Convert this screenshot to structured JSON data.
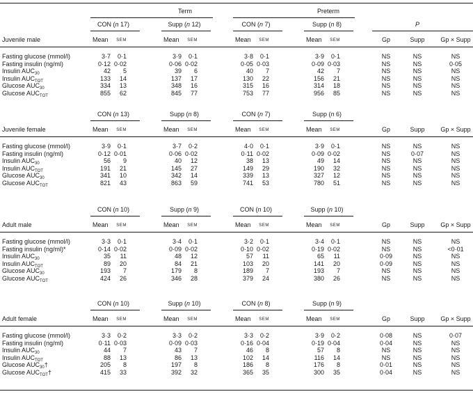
{
  "header": {
    "term": "Term",
    "preterm": "Preterm",
    "p": "P",
    "mean": "Mean",
    "sem": "SEM"
  },
  "sections": [
    {
      "title": "Juvenile male",
      "groups": [
        {
          "label": "CON",
          "n": "17"
        },
        {
          "label": "Supp",
          "n": "12"
        },
        {
          "label": "CON",
          "n": "7"
        },
        {
          "label": "Supp",
          "n": "8"
        }
      ],
      "p_headers": [
        "Gp",
        "Supp",
        "Gp × Supp"
      ],
      "rows": [
        {
          "label": "Fasting glucose (mmol/l)",
          "sub": "",
          "suffix": "",
          "values": [
            "3·7",
            "0·1",
            "3·9",
            "0·1",
            "3·8",
            "0·1",
            "3·9",
            "0·1"
          ],
          "p": [
            "NS",
            "NS",
            "NS"
          ]
        },
        {
          "label": "Fasting insulin (ng/ml)",
          "sub": "",
          "suffix": "",
          "values": [
            "0·12",
            "0·02",
            "0·06",
            "0·02",
            "0·05",
            "0·03",
            "0·09",
            "0·03"
          ],
          "p": [
            "NS",
            "NS",
            "0·05"
          ]
        },
        {
          "label": "Insulin AUC",
          "sub": "30",
          "suffix": "",
          "values": [
            "42",
            "5",
            "39",
            "6",
            "40",
            "7",
            "42",
            "7"
          ],
          "p": [
            "NS",
            "NS",
            "NS"
          ]
        },
        {
          "label": "Insulin AUC",
          "sub": "TOT",
          "suffix": "",
          "values": [
            "133",
            "14",
            "137",
            "17",
            "130",
            "22",
            "156",
            "21"
          ],
          "p": [
            "NS",
            "NS",
            "NS"
          ]
        },
        {
          "label": "Glucose AUC",
          "sub": "30",
          "suffix": "",
          "values": [
            "334",
            "13",
            "348",
            "16",
            "315",
            "16",
            "314",
            "18"
          ],
          "p": [
            "NS",
            "NS",
            "NS"
          ]
        },
        {
          "label": "Glucose AUC",
          "sub": "TOT",
          "suffix": "",
          "values": [
            "855",
            "62",
            "845",
            "77",
            "753",
            "77",
            "956",
            "85"
          ],
          "p": [
            "NS",
            "NS",
            "NS"
          ]
        }
      ]
    },
    {
      "title": "Juvenile female",
      "groups": [
        {
          "label": "CON",
          "n": "13"
        },
        {
          "label": "Supp",
          "n": "8"
        },
        {
          "label": "CON",
          "n": "7"
        },
        {
          "label": "Supp",
          "n": "6"
        }
      ],
      "p_headers": [
        "Gp",
        "Supp",
        "Gp × Supp"
      ],
      "rows": [
        {
          "label": "Fasting glucose (mmol/l)",
          "sub": "",
          "suffix": "",
          "values": [
            "3·9",
            "0·1",
            "3·7",
            "0·2",
            "4·0",
            "0·1",
            "3·9",
            "0·1"
          ],
          "p": [
            "NS",
            "NS",
            "NS"
          ]
        },
        {
          "label": "Fasting insulin (ng/ml)",
          "sub": "",
          "suffix": "",
          "values": [
            "0·12",
            "0·01",
            "0·06",
            "0·02",
            "0·11",
            "0·02",
            "0·09",
            "0·02"
          ],
          "p": [
            "NS",
            "0·07",
            "NS"
          ]
        },
        {
          "label": "Insulin AUC",
          "sub": "30",
          "suffix": "",
          "values": [
            "56",
            "9",
            "40",
            "12",
            "38",
            "13",
            "49",
            "14"
          ],
          "p": [
            "NS",
            "NS",
            "NS"
          ]
        },
        {
          "label": "Insulin AUC",
          "sub": "TOT",
          "suffix": "",
          "values": [
            "191",
            "21",
            "145",
            "27",
            "149",
            "29",
            "190",
            "32"
          ],
          "p": [
            "NS",
            "NS",
            "NS"
          ]
        },
        {
          "label": "Glucose AUC",
          "sub": "30",
          "suffix": "",
          "values": [
            "341",
            "10",
            "342",
            "14",
            "339",
            "13",
            "327",
            "12"
          ],
          "p": [
            "NS",
            "NS",
            "NS"
          ]
        },
        {
          "label": "Glucose AUC",
          "sub": "TOT",
          "suffix": "",
          "values": [
            "821",
            "43",
            "863",
            "59",
            "741",
            "53",
            "780",
            "51"
          ],
          "p": [
            "NS",
            "NS",
            "NS"
          ]
        }
      ]
    },
    {
      "title": "Adult male",
      "groups": [
        {
          "label": "CON",
          "n": "10"
        },
        {
          "label": "Supp",
          "n": "9"
        },
        {
          "label": "CON",
          "n": "10"
        },
        {
          "label": "Supp",
          "n": "10"
        }
      ],
      "p_headers": [
        "Gp",
        "Supp",
        "Gp × Supp"
      ],
      "rows": [
        {
          "label": "Fasting glucose (mmol/l)",
          "sub": "",
          "suffix": "",
          "values": [
            "3·3",
            "0·1",
            "3·4",
            "0·1",
            "3·2",
            "0·1",
            "3·4",
            "0·1"
          ],
          "p": [
            "NS",
            "NS",
            "NS"
          ]
        },
        {
          "label": "Fasting insulin (ng/ml)*",
          "sub": "",
          "suffix": "",
          "values": [
            "0·14",
            "0·02",
            "0·09",
            "0·02",
            "0·10",
            "0·02",
            "0·19",
            "0·02"
          ],
          "p": [
            "NS",
            "NS",
            "<0·01"
          ]
        },
        {
          "label": "Insulin AUC",
          "sub": "30",
          "suffix": "",
          "values": [
            "35",
            "11",
            "48",
            "12",
            "57",
            "11",
            "65",
            "11"
          ],
          "p": [
            "0·09",
            "NS",
            "NS"
          ]
        },
        {
          "label": "Insulin AUC",
          "sub": "TOT",
          "suffix": "",
          "values": [
            "89",
            "20",
            "84",
            "21",
            "103",
            "20",
            "141",
            "20"
          ],
          "p": [
            "0·09",
            "NS",
            "NS"
          ]
        },
        {
          "label": "Glucose AUC",
          "sub": "30",
          "suffix": "",
          "values": [
            "193",
            "7",
            "179",
            "8",
            "189",
            "7",
            "193",
            "7"
          ],
          "p": [
            "NS",
            "NS",
            "NS"
          ]
        },
        {
          "label": "Glucose AUC",
          "sub": "TOT",
          "suffix": "",
          "values": [
            "424",
            "26",
            "346",
            "28",
            "379",
            "24",
            "380",
            "26"
          ],
          "p": [
            "NS",
            "NS",
            "NS"
          ]
        }
      ]
    },
    {
      "title": "Adult female",
      "groups": [
        {
          "label": "CON",
          "n": "10"
        },
        {
          "label": "Supp",
          "n": "10"
        },
        {
          "label": "CON",
          "n": "8"
        },
        {
          "label": "Supp",
          "n": "9"
        }
      ],
      "p_headers": [
        "Gp",
        "Supp",
        "Gp × Supp"
      ],
      "rows": [
        {
          "label": "Fasting glucose (mmol/l)",
          "sub": "",
          "suffix": "",
          "values": [
            "3·3",
            "0·2",
            "3·3",
            "0·2",
            "3·3",
            "0·2",
            "3·9",
            "0·2"
          ],
          "p": [
            "0·08",
            "NS",
            "0·07"
          ]
        },
        {
          "label": "Fasting insulin (ng/ml)",
          "sub": "",
          "suffix": "",
          "values": [
            "0·11",
            "0·03",
            "0·09",
            "0·03",
            "0·16",
            "0·04",
            "0·19",
            "0·04"
          ],
          "p": [
            "0·04",
            "NS",
            "NS"
          ]
        },
        {
          "label": "Insulin AUC",
          "sub": "30",
          "suffix": "",
          "values": [
            "44",
            "7",
            "43",
            "7",
            "46",
            "8",
            "57",
            "8"
          ],
          "p": [
            "NS",
            "NS",
            "NS"
          ]
        },
        {
          "label": "Insulin AUC",
          "sub": "TOT",
          "suffix": "",
          "values": [
            "88",
            "13",
            "86",
            "13",
            "102",
            "14",
            "116",
            "14"
          ],
          "p": [
            "NS",
            "NS",
            "NS"
          ]
        },
        {
          "label": "Glucose AUC",
          "sub": "30",
          "suffix": "†",
          "values": [
            "205",
            "8",
            "197",
            "8",
            "186",
            "8",
            "176",
            "8"
          ],
          "p": [
            "0·01",
            "NS",
            "NS"
          ]
        },
        {
          "label": "Glucose AUC",
          "sub": "TOT",
          "suffix": "†",
          "values": [
            "415",
            "33",
            "392",
            "32",
            "365",
            "35",
            "300",
            "35"
          ],
          "p": [
            "0·04",
            "NS",
            "NS"
          ]
        }
      ]
    }
  ]
}
